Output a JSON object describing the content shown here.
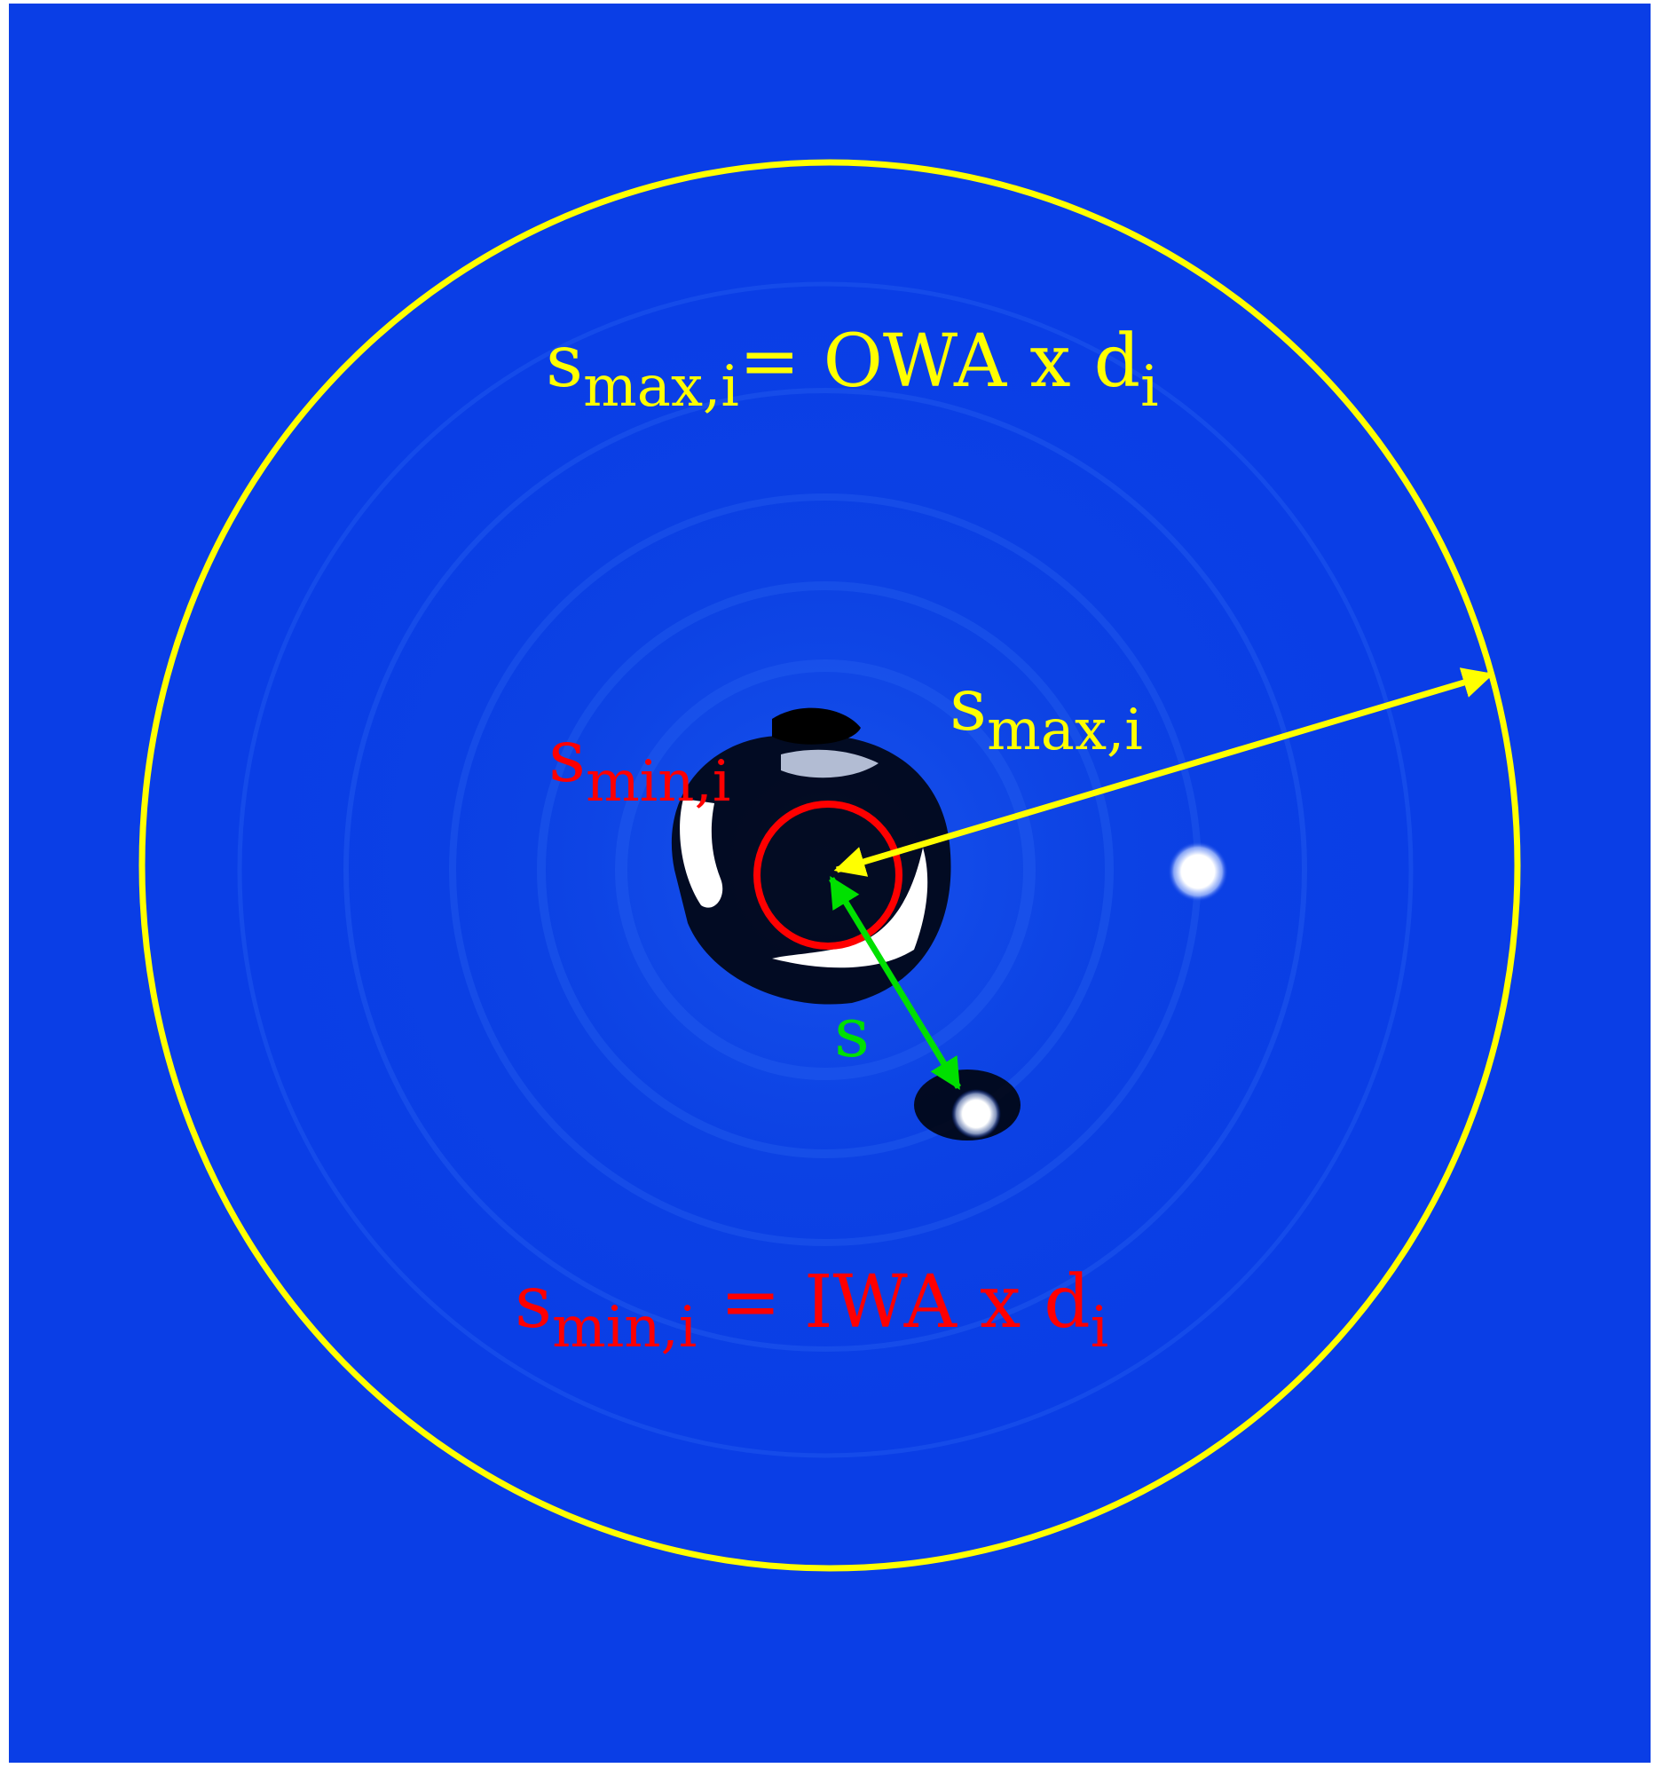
{
  "colors": {
    "background": "#0a3ee6",
    "outer_circle": "#ffff00",
    "inner_circle": "#ff0000",
    "separation_arrow": "#00e000",
    "planet": "#ffffff"
  },
  "labels": {
    "owa_formula": {
      "s": "s",
      "sub": "max,i",
      "rest": "= OWA x d",
      "rest_sub": "i"
    },
    "smax": {
      "s": "s",
      "sub": "max,i"
    },
    "smin": {
      "s": "s",
      "sub": "min,i"
    },
    "separation": "s",
    "iwa_formula": {
      "s": "s",
      "sub": "min,i",
      "rest": " = IWA x d",
      "rest_sub": "i"
    }
  },
  "icons": {
    "outer_circle": "circle",
    "inner_circle": "circle",
    "smax_arrow": "double-arrow",
    "separation_arrow": "double-arrow",
    "planet": "dot"
  }
}
